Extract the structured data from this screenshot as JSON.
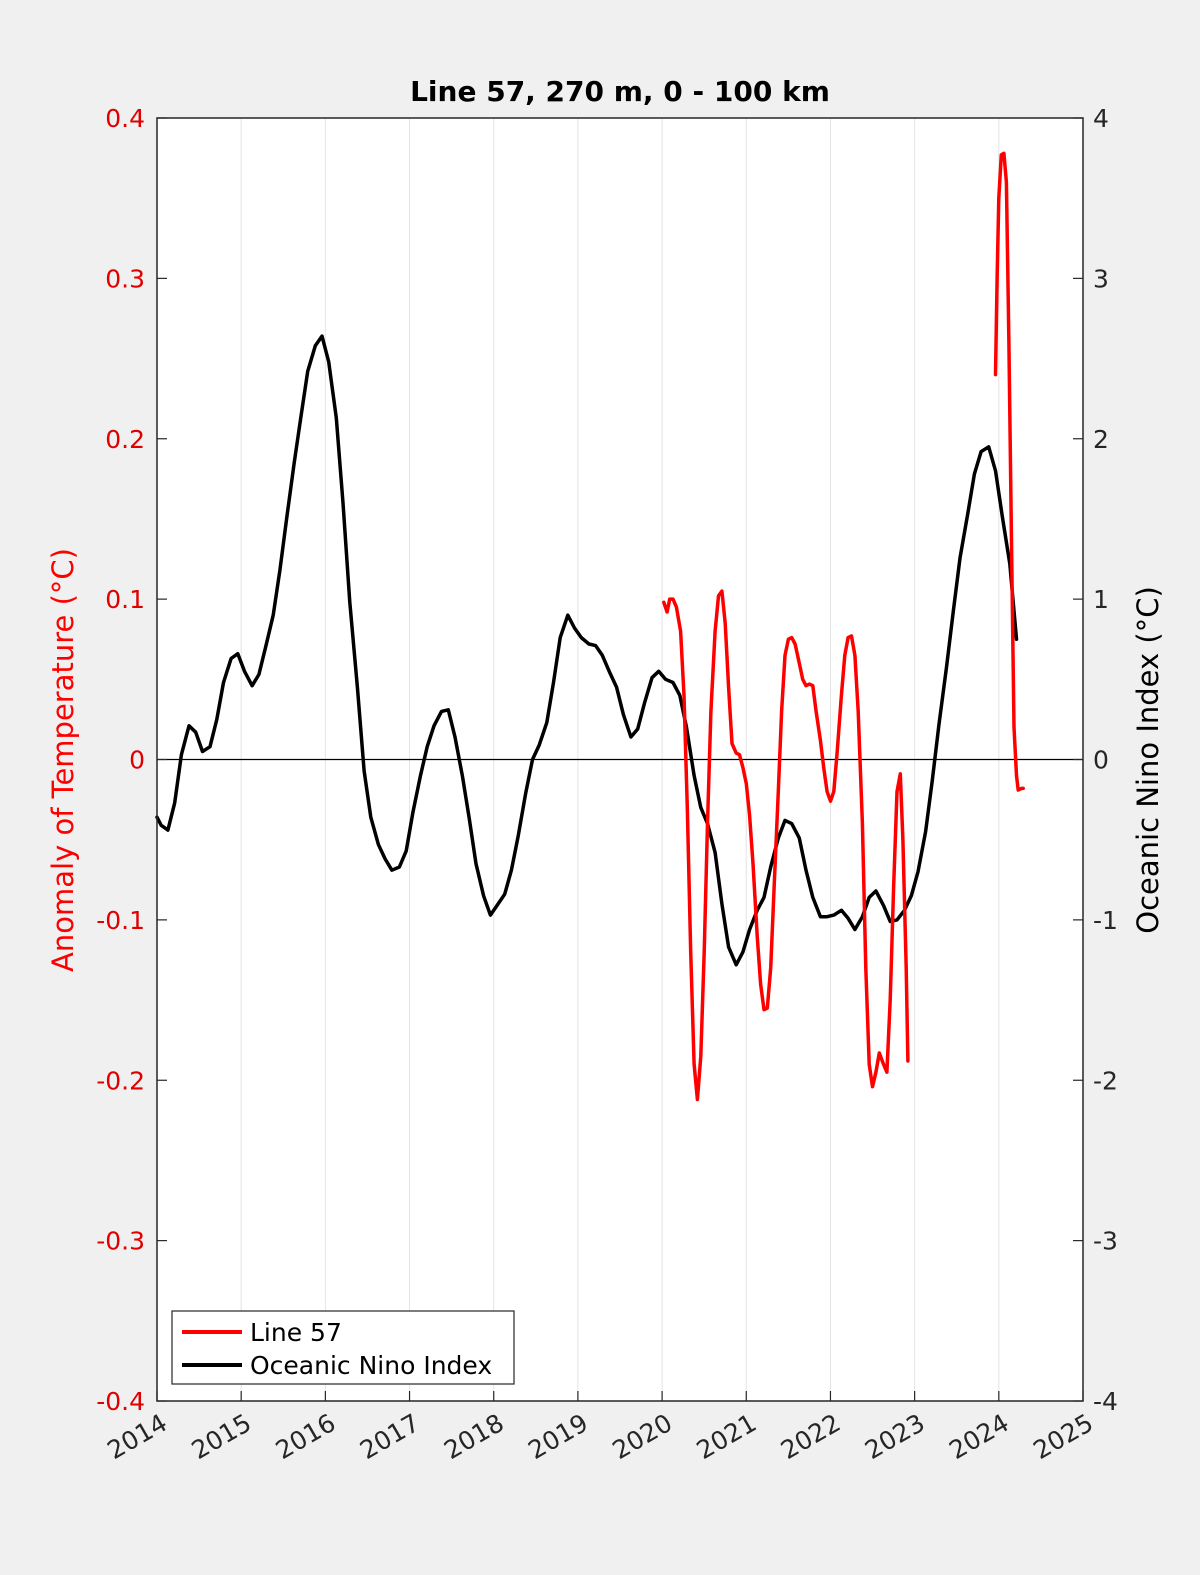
{
  "chart_data": {
    "type": "line",
    "title": "Line 57, 270 m, 0 - 100 km",
    "ylabel": "Anomaly of Temperature (°C)",
    "ylabel_right": "Oceanic Nino Index (°C)",
    "xlim": [
      2014,
      2025
    ],
    "ylim": [
      -0.4,
      0.4
    ],
    "ylim_right": [
      -4,
      4
    ],
    "x_ticks": [
      "2014",
      "2015",
      "2016",
      "2017",
      "2018",
      "2019",
      "2020",
      "2021",
      "2022",
      "2023",
      "2024",
      "2025"
    ],
    "y_ticks": [
      "-0.4",
      "-0.3",
      "-0.2",
      "-0.1",
      "0",
      "0.1",
      "0.2",
      "0.3",
      "0.4"
    ],
    "y_ticks_right": [
      "-4",
      "-3",
      "-2",
      "-1",
      "0",
      "1",
      "2",
      "3",
      "4"
    ],
    "grid": "vertical",
    "legend_position": "bottom-left",
    "colors": {
      "line57": "#ff0000",
      "oni": "#000000",
      "left_axis": "#e00000"
    },
    "series": [
      {
        "name": "Line 57",
        "axis": "left",
        "segments": [
          [
            [
              2020.02,
              0.098
            ],
            [
              2020.06,
              0.092
            ],
            [
              2020.09,
              0.1
            ],
            [
              2020.13,
              0.1
            ],
            [
              2020.17,
              0.095
            ],
            [
              2020.22,
              0.08
            ],
            [
              2020.26,
              0.04
            ],
            [
              2020.3,
              -0.03
            ],
            [
              2020.34,
              -0.12
            ],
            [
              2020.38,
              -0.19
            ],
            [
              2020.42,
              -0.212
            ],
            [
              2020.46,
              -0.185
            ],
            [
              2020.5,
              -0.12
            ],
            [
              2020.54,
              -0.04
            ],
            [
              2020.58,
              0.03
            ],
            [
              2020.63,
              0.08
            ],
            [
              2020.67,
              0.102
            ],
            [
              2020.71,
              0.105
            ],
            [
              2020.75,
              0.085
            ],
            [
              2020.79,
              0.045
            ],
            [
              2020.83,
              0.01
            ],
            [
              2020.88,
              0.004
            ],
            [
              2020.92,
              0.003
            ],
            [
              2020.96,
              -0.005
            ],
            [
              2021.0,
              -0.015
            ],
            [
              2021.04,
              -0.035
            ],
            [
              2021.08,
              -0.065
            ],
            [
              2021.13,
              -0.11
            ],
            [
              2021.17,
              -0.14
            ],
            [
              2021.21,
              -0.156
            ],
            [
              2021.25,
              -0.155
            ],
            [
              2021.29,
              -0.13
            ],
            [
              2021.33,
              -0.08
            ],
            [
              2021.38,
              -0.02
            ],
            [
              2021.42,
              0.03
            ],
            [
              2021.46,
              0.065
            ],
            [
              2021.5,
              0.075
            ],
            [
              2021.54,
              0.076
            ],
            [
              2021.58,
              0.072
            ],
            [
              2021.63,
              0.06
            ],
            [
              2021.67,
              0.05
            ],
            [
              2021.71,
              0.046
            ],
            [
              2021.75,
              0.047
            ],
            [
              2021.79,
              0.046
            ],
            [
              2021.83,
              0.03
            ],
            [
              2021.88,
              0.012
            ],
            [
              2021.92,
              -0.005
            ],
            [
              2021.96,
              -0.02
            ],
            [
              2022.0,
              -0.026
            ],
            [
              2022.04,
              -0.02
            ],
            [
              2022.08,
              0.005
            ],
            [
              2022.13,
              0.04
            ],
            [
              2022.17,
              0.065
            ],
            [
              2022.21,
              0.076
            ],
            [
              2022.25,
              0.077
            ],
            [
              2022.29,
              0.065
            ],
            [
              2022.33,
              0.03
            ],
            [
              2022.38,
              -0.04
            ],
            [
              2022.42,
              -0.13
            ],
            [
              2022.46,
              -0.19
            ],
            [
              2022.5,
              -0.204
            ],
            [
              2022.54,
              -0.195
            ],
            [
              2022.58,
              -0.183
            ],
            [
              2022.63,
              -0.19
            ],
            [
              2022.67,
              -0.195
            ],
            [
              2022.71,
              -0.15
            ],
            [
              2022.75,
              -0.08
            ],
            [
              2022.79,
              -0.02
            ],
            [
              2022.83,
              -0.009
            ],
            [
              2022.86,
              -0.05
            ],
            [
              2022.9,
              -0.13
            ],
            [
              2022.92,
              -0.188
            ]
          ],
          [
            [
              2023.96,
              0.24
            ],
            [
              2023.98,
              0.3
            ],
            [
              2024.0,
              0.35
            ],
            [
              2024.03,
              0.377
            ],
            [
              2024.06,
              0.378
            ],
            [
              2024.09,
              0.36
            ],
            [
              2024.12,
              0.26
            ],
            [
              2024.15,
              0.14
            ],
            [
              2024.18,
              0.02
            ],
            [
              2024.21,
              -0.01
            ],
            [
              2024.23,
              -0.019
            ],
            [
              2024.27,
              -0.018
            ],
            [
              2024.29,
              -0.018
            ]
          ]
        ]
      },
      {
        "name": "Oceanic Nino Index",
        "axis": "right",
        "segments": [
          [
            [
              2014.0,
              -0.36
            ],
            [
              2014.05,
              -0.41
            ],
            [
              2014.13,
              -0.44
            ],
            [
              2014.21,
              -0.27
            ],
            [
              2014.29,
              0.03
            ],
            [
              2014.38,
              0.21
            ],
            [
              2014.46,
              0.17
            ],
            [
              2014.54,
              0.05
            ],
            [
              2014.63,
              0.08
            ],
            [
              2014.71,
              0.25
            ],
            [
              2014.79,
              0.48
            ],
            [
              2014.88,
              0.63
            ],
            [
              2014.96,
              0.66
            ],
            [
              2015.04,
              0.55
            ],
            [
              2015.13,
              0.46
            ],
            [
              2015.21,
              0.53
            ],
            [
              2015.29,
              0.7
            ],
            [
              2015.38,
              0.9
            ],
            [
              2015.46,
              1.18
            ],
            [
              2015.54,
              1.5
            ],
            [
              2015.63,
              1.85
            ],
            [
              2015.71,
              2.14
            ],
            [
              2015.79,
              2.42
            ],
            [
              2015.88,
              2.58
            ],
            [
              2015.96,
              2.64
            ],
            [
              2016.04,
              2.48
            ],
            [
              2016.13,
              2.13
            ],
            [
              2016.21,
              1.6
            ],
            [
              2016.29,
              0.98
            ],
            [
              2016.38,
              0.45
            ],
            [
              2016.46,
              -0.07
            ],
            [
              2016.54,
              -0.36
            ],
            [
              2016.63,
              -0.53
            ],
            [
              2016.71,
              -0.62
            ],
            [
              2016.79,
              -0.69
            ],
            [
              2016.88,
              -0.67
            ],
            [
              2016.96,
              -0.57
            ],
            [
              2017.04,
              -0.33
            ],
            [
              2017.13,
              -0.1
            ],
            [
              2017.21,
              0.08
            ],
            [
              2017.29,
              0.21
            ],
            [
              2017.38,
              0.3
            ],
            [
              2017.46,
              0.31
            ],
            [
              2017.54,
              0.14
            ],
            [
              2017.63,
              -0.11
            ],
            [
              2017.71,
              -0.37
            ],
            [
              2017.79,
              -0.65
            ],
            [
              2017.88,
              -0.85
            ],
            [
              2017.96,
              -0.97
            ],
            [
              2018.04,
              -0.91
            ],
            [
              2018.13,
              -0.84
            ],
            [
              2018.21,
              -0.69
            ],
            [
              2018.29,
              -0.48
            ],
            [
              2018.38,
              -0.21
            ],
            [
              2018.46,
              0.0
            ],
            [
              2018.54,
              0.09
            ],
            [
              2018.63,
              0.23
            ],
            [
              2018.71,
              0.48
            ],
            [
              2018.79,
              0.76
            ],
            [
              2018.88,
              0.9
            ],
            [
              2018.96,
              0.82
            ],
            [
              2019.04,
              0.76
            ],
            [
              2019.13,
              0.72
            ],
            [
              2019.21,
              0.71
            ],
            [
              2019.29,
              0.65
            ],
            [
              2019.38,
              0.54
            ],
            [
              2019.46,
              0.45
            ],
            [
              2019.54,
              0.28
            ],
            [
              2019.63,
              0.14
            ],
            [
              2019.71,
              0.19
            ],
            [
              2019.79,
              0.35
            ],
            [
              2019.88,
              0.51
            ],
            [
              2019.96,
              0.55
            ],
            [
              2020.04,
              0.5
            ],
            [
              2020.13,
              0.48
            ],
            [
              2020.21,
              0.4
            ],
            [
              2020.29,
              0.2
            ],
            [
              2020.38,
              -0.1
            ],
            [
              2020.46,
              -0.3
            ],
            [
              2020.54,
              -0.4
            ],
            [
              2020.63,
              -0.58
            ],
            [
              2020.71,
              -0.9
            ],
            [
              2020.79,
              -1.17
            ],
            [
              2020.88,
              -1.28
            ],
            [
              2020.96,
              -1.2
            ],
            [
              2021.04,
              -1.06
            ],
            [
              2021.13,
              -0.94
            ],
            [
              2021.21,
              -0.86
            ],
            [
              2021.29,
              -0.67
            ],
            [
              2021.38,
              -0.49
            ],
            [
              2021.46,
              -0.38
            ],
            [
              2021.54,
              -0.4
            ],
            [
              2021.63,
              -0.49
            ],
            [
              2021.71,
              -0.69
            ],
            [
              2021.79,
              -0.86
            ],
            [
              2021.88,
              -0.98
            ],
            [
              2021.96,
              -0.98
            ],
            [
              2022.04,
              -0.97
            ],
            [
              2022.13,
              -0.94
            ],
            [
              2022.21,
              -0.99
            ],
            [
              2022.29,
              -1.06
            ],
            [
              2022.38,
              -0.98
            ],
            [
              2022.46,
              -0.86
            ],
            [
              2022.54,
              -0.82
            ],
            [
              2022.63,
              -0.91
            ],
            [
              2022.71,
              -1.01
            ],
            [
              2022.79,
              -1.0
            ],
            [
              2022.88,
              -0.94
            ],
            [
              2022.96,
              -0.85
            ],
            [
              2023.04,
              -0.7
            ],
            [
              2023.13,
              -0.45
            ],
            [
              2023.21,
              -0.13
            ],
            [
              2023.29,
              0.22
            ],
            [
              2023.38,
              0.58
            ],
            [
              2023.46,
              0.93
            ],
            [
              2023.54,
              1.26
            ],
            [
              2023.63,
              1.53
            ],
            [
              2023.71,
              1.78
            ],
            [
              2023.79,
              1.92
            ],
            [
              2023.88,
              1.95
            ],
            [
              2023.96,
              1.8
            ],
            [
              2024.04,
              1.52
            ],
            [
              2024.13,
              1.22
            ],
            [
              2024.21,
              0.75
            ]
          ]
        ]
      }
    ]
  }
}
